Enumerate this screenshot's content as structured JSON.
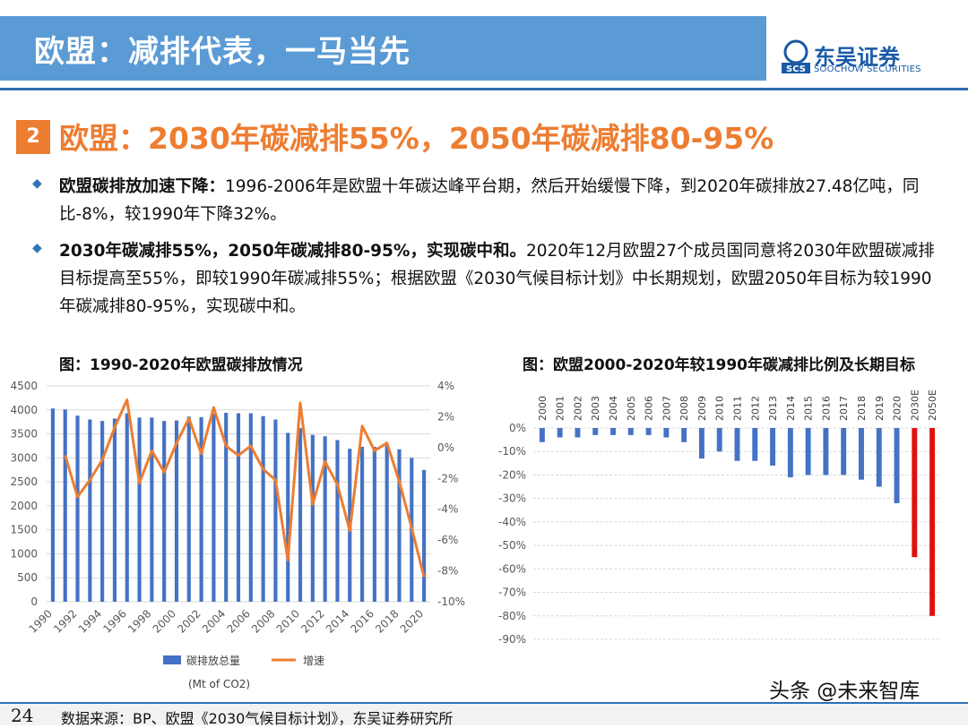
{
  "header": {
    "title": "欧盟：减排代表，一马当先",
    "logo_cn": "东吴证券",
    "logo_en": "SOOCHOW SECURITIES",
    "logo_mark": "SCS"
  },
  "section": {
    "number": "2",
    "title": "欧盟：2030年碳减排55%，2050年碳减排80-95%"
  },
  "bullets": [
    {
      "bold": "欧盟碳排放加速下降：",
      "text": "1996-2006年是欧盟十年碳达峰平台期，然后开始缓慢下降，到2020年碳排放27.48亿吨，同比-8%，较1990年下降32%。"
    },
    {
      "bold": "2030年碳减排55%，2050年碳减排80-95%，实现碳中和。",
      "text": "2020年12月欧盟27个成员国同意将2030年欧盟碳减排目标提高至55%，即较1990年碳减排55%；根据欧盟《2030气候目标计划》中长期规划，欧盟2050年目标为较1990年碳减排80-95%，实现碳中和。"
    }
  ],
  "chart_left_title": "图：1990-2020年欧盟碳排放情况",
  "chart_right_title": "图：欧盟2000-2020年较1990年碳减排比例及长期目标",
  "footer": {
    "page": "24",
    "source": "数据来源：BP、欧盟《2030气候目标计划》，东吴证券研究所",
    "watermark": "头条 @未来智库"
  },
  "colors": {
    "bar": "#4472c4",
    "line": "#ed7d31",
    "target": "#e01010",
    "header": "#5b9bd5",
    "accent": "#ed7d31"
  },
  "chart_data": [
    {
      "type": "bar",
      "title": "图：1990-2020年欧盟碳排放情况",
      "x": [
        1990,
        1991,
        1992,
        1993,
        1994,
        1995,
        1996,
        1997,
        1998,
        1999,
        2000,
        2001,
        2002,
        2003,
        2004,
        2005,
        2006,
        2007,
        2008,
        2009,
        2010,
        2011,
        2012,
        2013,
        2014,
        2015,
        2016,
        2017,
        2018,
        2019,
        2020
      ],
      "x_tick_labels": [
        "1990",
        "1992",
        "1994",
        "1996",
        "1998",
        "2000",
        "2002",
        "2004",
        "2006",
        "2008",
        "2010",
        "2012",
        "2014",
        "2016",
        "2018",
        "2020"
      ],
      "series": [
        {
          "name": "碳排放总量",
          "axis": "left",
          "type": "bar",
          "values": [
            4030,
            4010,
            3880,
            3800,
            3770,
            3820,
            3930,
            3840,
            3840,
            3770,
            3780,
            3860,
            3850,
            3920,
            3940,
            3930,
            3930,
            3870,
            3800,
            3520,
            3620,
            3480,
            3450,
            3370,
            3190,
            3230,
            3230,
            3260,
            3180,
            3000,
            2748
          ]
        },
        {
          "name": "增速",
          "axis": "right",
          "type": "line",
          "values": [
            null,
            -0.5,
            -3.2,
            -2.1,
            -0.8,
            1.3,
            3.1,
            -2.3,
            -0.2,
            -1.6,
            0.3,
            1.9,
            -0.4,
            2.6,
            0.1,
            -0.5,
            0.1,
            -1.4,
            -2.1,
            -7.3,
            2.9,
            -3.7,
            -0.9,
            -2.4,
            -5.4,
            1.4,
            -0.2,
            0.3,
            -2.2,
            -5.2,
            -8.4
          ]
        }
      ],
      "left_axis": {
        "ticks": [
          "4500",
          "4000",
          "3500",
          "3000",
          "2500",
          "2000",
          "1500",
          "1000",
          "500",
          "0"
        ],
        "ylim": [
          0,
          4500
        ]
      },
      "right_axis": {
        "ticks": [
          "4%",
          "2%",
          "0%",
          "-2%",
          "-4%",
          "-6%",
          "-8%",
          "-10%"
        ],
        "ylim": [
          -10,
          4
        ]
      },
      "legend": {
        "placement": "bottom",
        "bar_label": "碳排放总量",
        "line_label": "增速",
        "unit": "(Mt of CO2)"
      },
      "grid": true
    },
    {
      "type": "bar",
      "title": "图：欧盟2000-2020年较1990年碳减排比例及长期目标",
      "categories": [
        "2000",
        "2001",
        "2002",
        "2003",
        "2004",
        "2005",
        "2006",
        "2007",
        "2008",
        "2009",
        "2010",
        "2011",
        "2012",
        "2013",
        "2014",
        "2015",
        "2016",
        "2017",
        "2018",
        "2019",
        "2020",
        "2030E",
        "2050E"
      ],
      "values": [
        -6,
        -4,
        -4,
        -3,
        -3,
        -3,
        -3,
        -4,
        -6,
        -13,
        -10,
        -14,
        -14,
        -16,
        -21,
        -20,
        -20,
        -20,
        -22,
        -25,
        -32,
        -55,
        -80
      ],
      "highlight": [
        "2030E",
        "2050E"
      ],
      "y_ticks": [
        "0%",
        "-10%",
        "-20%",
        "-30%",
        "-40%",
        "-50%",
        "-60%",
        "-70%",
        "-80%",
        "-90%"
      ],
      "ylim": [
        -90,
        0
      ],
      "grid": true
    }
  ]
}
